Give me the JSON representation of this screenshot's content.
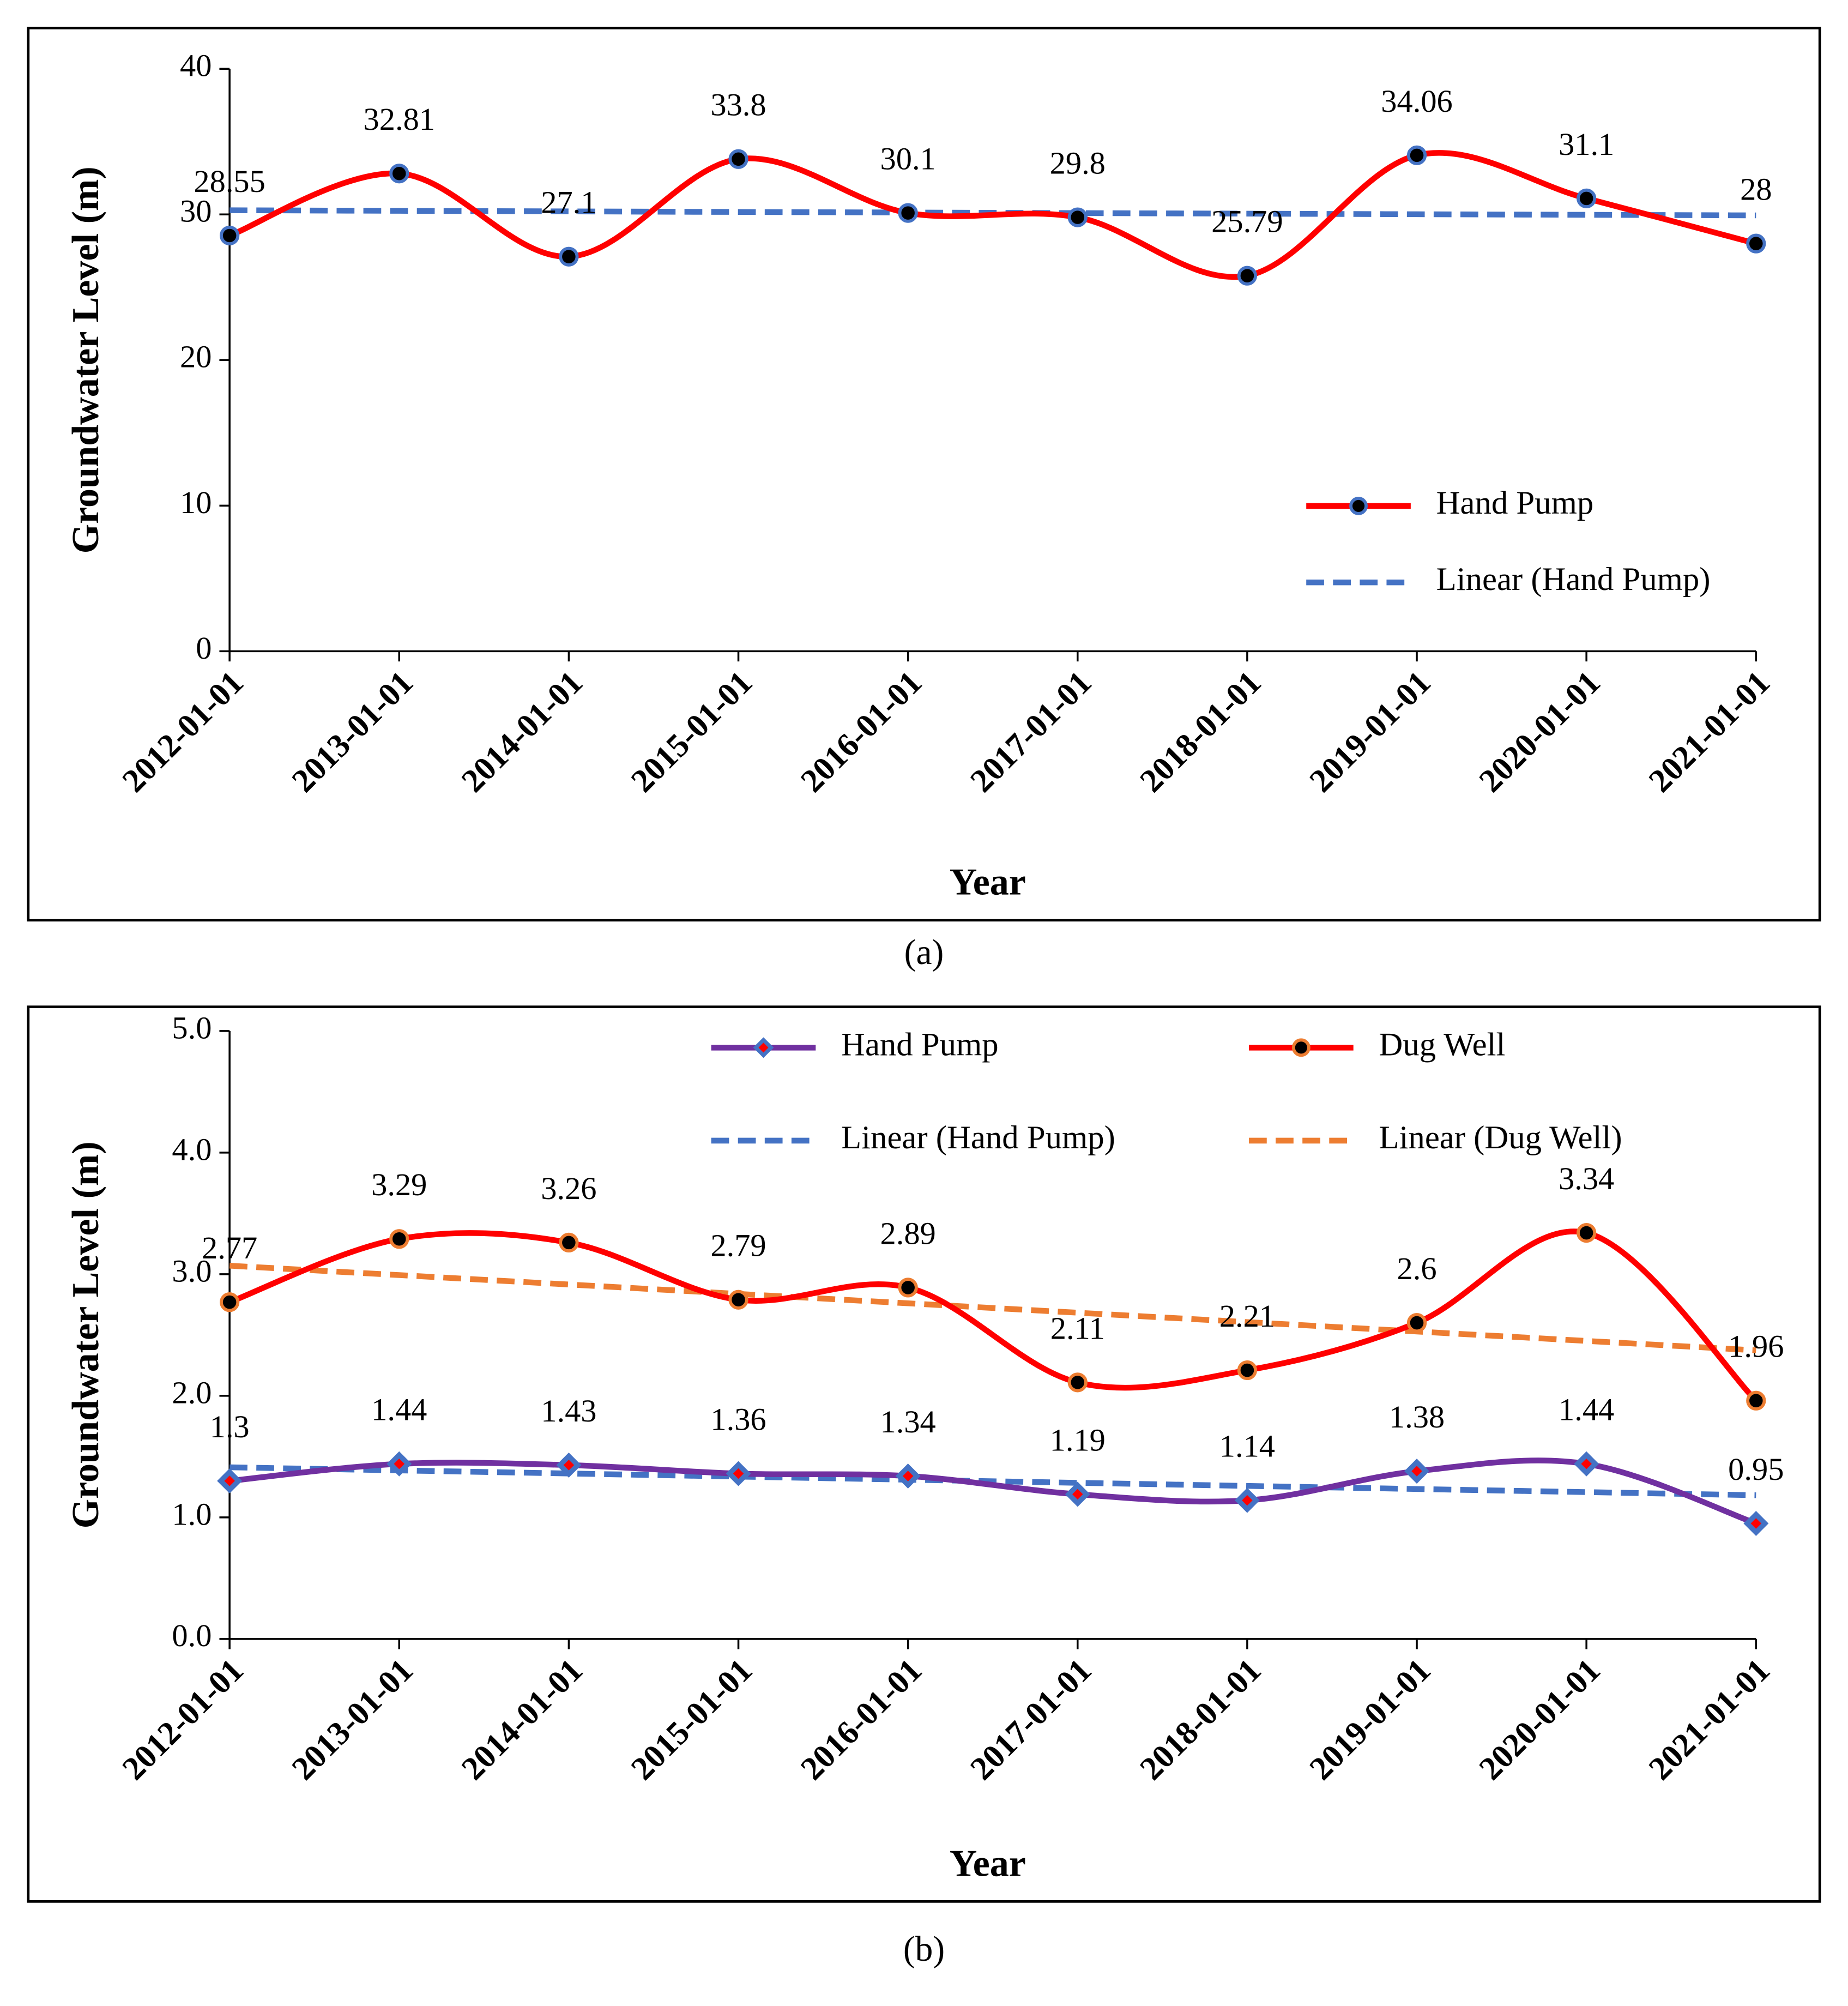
{
  "chart_data": [
    {
      "type": "line",
      "caption": "(a)",
      "x_label": "Year",
      "y_label": "Groundwater Level (m)",
      "categories": [
        "2012-01-01",
        "2013-01-01",
        "2014-01-01",
        "2015-01-01",
        "2016-01-01",
        "2017-01-01",
        "2018-01-01",
        "2019-01-01",
        "2020-01-01",
        "2021-01-01"
      ],
      "series": [
        {
          "name": "Hand Pump",
          "color": "#ff0000",
          "marker": "circle",
          "marker_fill": "#000000",
          "marker_stroke": "#4472c4",
          "values": [
            28.55,
            32.81,
            27.1,
            33.8,
            30.1,
            29.8,
            25.79,
            34.06,
            31.1,
            28
          ],
          "trendline": {
            "name": "Linear (Hand Pump)",
            "color": "#4472c4"
          }
        }
      ],
      "ylim": [
        0,
        40
      ],
      "yticks": [
        0,
        10,
        20,
        30,
        40
      ],
      "legend": "lower right",
      "smooth": true
    },
    {
      "type": "line",
      "caption": "(b)",
      "x_label": "Year",
      "y_label": "Groundwater Level (m)",
      "categories": [
        "2012-01-01",
        "2013-01-01",
        "2014-01-01",
        "2015-01-01",
        "2016-01-01",
        "2017-01-01",
        "2018-01-01",
        "2019-01-01",
        "2020-01-01",
        "2021-01-01"
      ],
      "series": [
        {
          "name": "Hand Pump",
          "color": "#7030a0",
          "marker": "diamond",
          "marker_fill": "#ff0000",
          "marker_stroke": "#4472c4",
          "values": [
            1.3,
            1.44,
            1.43,
            1.36,
            1.34,
            1.19,
            1.14,
            1.38,
            1.44,
            0.95
          ],
          "trendline": {
            "name": "Linear (Hand Pump)",
            "color": "#4472c4"
          }
        },
        {
          "name": "Dug Well",
          "color": "#ff0000",
          "marker": "circle",
          "marker_fill": "#000000",
          "marker_stroke": "#ed7d31",
          "values": [
            2.77,
            3.29,
            3.26,
            2.79,
            2.89,
            2.11,
            2.21,
            2.6,
            3.34,
            1.96
          ],
          "trendline": {
            "name": "Linear (Dug Well)",
            "color": "#ed7d31"
          }
        }
      ],
      "ylim": [
        0,
        5
      ],
      "yticks": [
        {
          "value": 0,
          "label": "0.0"
        },
        {
          "value": 1,
          "label": "1.0"
        },
        {
          "value": 2,
          "label": "2.0"
        },
        {
          "value": 3,
          "label": "3.0"
        },
        {
          "value": 4,
          "label": "4.0"
        },
        {
          "value": 5,
          "label": "5.0"
        }
      ],
      "legend": "top",
      "smooth": true
    }
  ]
}
